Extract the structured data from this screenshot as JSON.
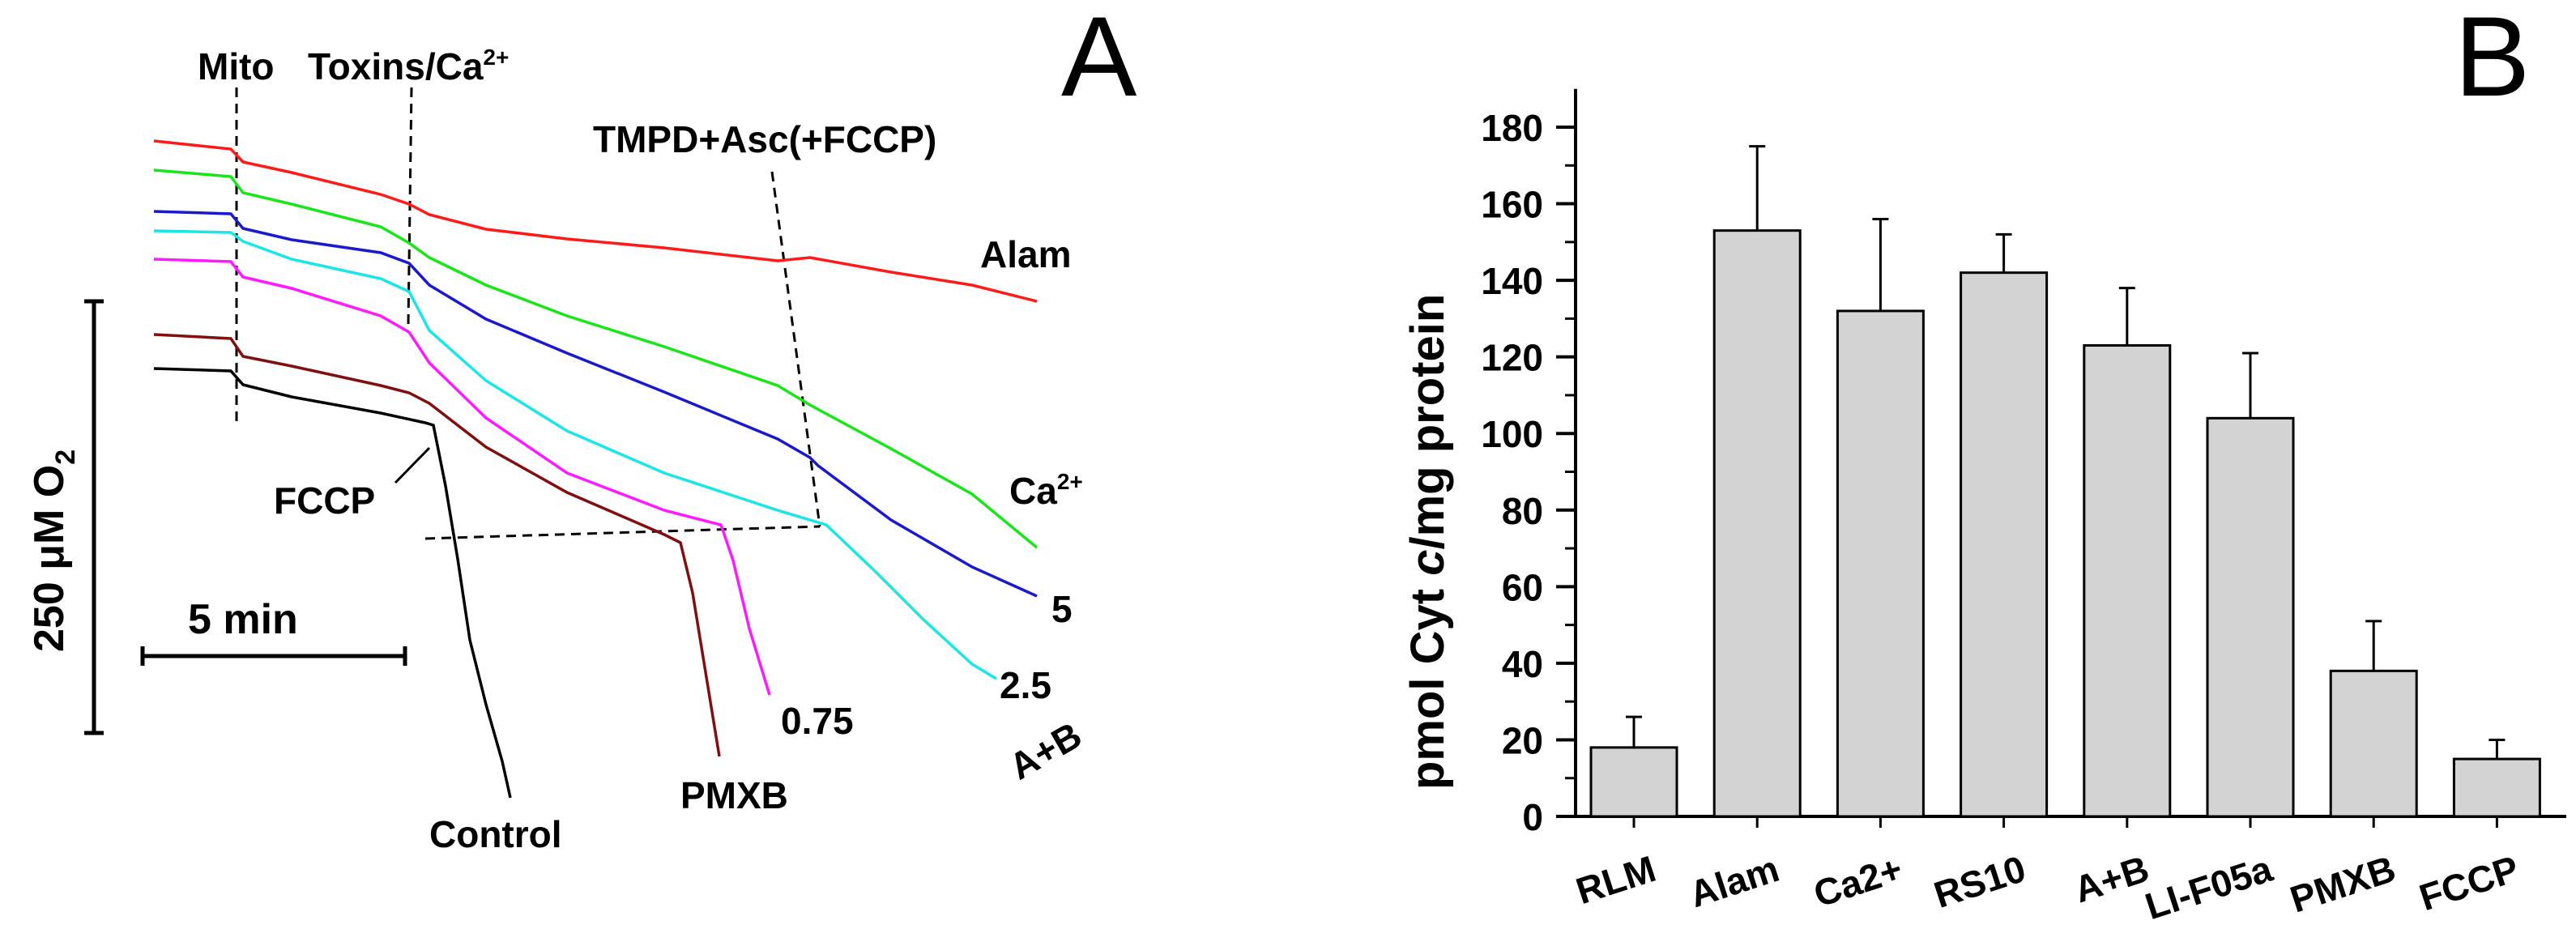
{
  "chart_data": [
    {
      "panel_letter": "A",
      "type": "line",
      "title": "",
      "scale_bars": {
        "vertical_label_prefix": "250 μM O",
        "vertical_label_sub": "2",
        "horizontal_label": "5 min"
      },
      "markers": {
        "mito": "Mito",
        "toxins": "Toxins/Ca",
        "toxins_sup": "2+",
        "tmpd": "TMPD+Asc(+FCCP)",
        "fccp": "FCCP"
      },
      "series": [
        {
          "name": "Alam",
          "label": "Alam",
          "color": "#ff1a1a"
        },
        {
          "name": "Ca2+",
          "label": "Ca",
          "label_sup": "2+",
          "color": "#19e619"
        },
        {
          "name": "5",
          "label": "5",
          "color": "#1a1acc"
        },
        {
          "name": "2.5",
          "label": "2.5",
          "color": "#19e6e6"
        },
        {
          "name": "0.75",
          "label": "0.75",
          "color": "#ff19ff"
        },
        {
          "name": "PMXB",
          "label": "PMXB",
          "color": "#801010"
        },
        {
          "name": "Control",
          "label": "Control",
          "color": "#000000"
        }
      ],
      "extra_labels": {
        "ab": "A+B"
      }
    },
    {
      "panel_letter": "B",
      "type": "bar",
      "title": "",
      "ylabel_parts": [
        "pmol Cyt ",
        "c",
        "/mg protein"
      ],
      "xlabel": "",
      "ylim": [
        0,
        190
      ],
      "yticks": [
        0,
        20,
        40,
        60,
        80,
        100,
        120,
        140,
        160,
        180
      ],
      "categories": [
        "RLM",
        "Alam",
        "Ca2+",
        "RS10",
        "A+B",
        "LI-F05a",
        "PMXB",
        "FCCP"
      ],
      "values": [
        18,
        153,
        132,
        142,
        123,
        104,
        38,
        15
      ],
      "errors": [
        8,
        22,
        24,
        10,
        15,
        17,
        13,
        5
      ],
      "bar_color": "#d3d3d3"
    }
  ]
}
